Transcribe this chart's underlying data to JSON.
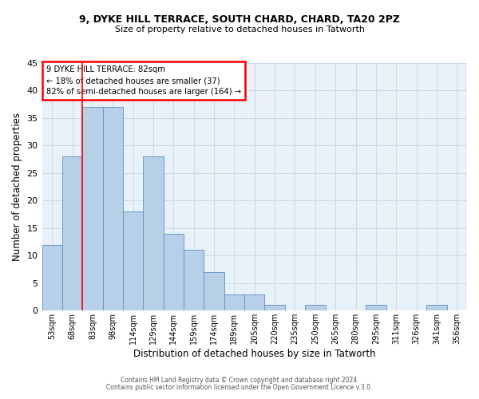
{
  "title": "9, DYKE HILL TERRACE, SOUTH CHARD, CHARD, TA20 2PZ",
  "subtitle": "Size of property relative to detached houses in Tatworth",
  "xlabel": "Distribution of detached houses by size in Tatworth",
  "ylabel": "Number of detached properties",
  "bar_color": "#b8cfe8",
  "bar_edge_color": "#5b8ec4",
  "bin_labels": [
    "53sqm",
    "68sqm",
    "83sqm",
    "98sqm",
    "114sqm",
    "129sqm",
    "144sqm",
    "159sqm",
    "174sqm",
    "189sqm",
    "205sqm",
    "220sqm",
    "235sqm",
    "250sqm",
    "265sqm",
    "280sqm",
    "295sqm",
    "311sqm",
    "326sqm",
    "341sqm",
    "356sqm"
  ],
  "counts": [
    12,
    28,
    37,
    37,
    18,
    28,
    14,
    11,
    7,
    3,
    3,
    1,
    0,
    1,
    0,
    0,
    1,
    0,
    0,
    1,
    0
  ],
  "vline_bin_index": 2,
  "ylim": [
    0,
    45
  ],
  "yticks": [
    0,
    5,
    10,
    15,
    20,
    25,
    30,
    35,
    40,
    45
  ],
  "annotation_title": "9 DYKE HILL TERRACE: 82sqm",
  "annotation_line1": "← 18% of detached houses are smaller (37)",
  "annotation_line2": "82% of semi-detached houses are larger (164) →",
  "annotation_box_color": "white",
  "annotation_box_edge_color": "red",
  "grid_color": "#c8d8e8",
  "background_color": "#e8f0f8",
  "footer1": "Contains HM Land Registry data © Crown copyright and database right 2024.",
  "footer2": "Contains public sector information licensed under the Open Government Licence v.3.0."
}
